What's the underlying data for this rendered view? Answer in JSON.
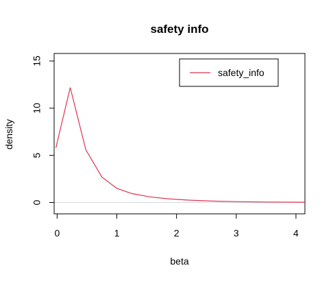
{
  "chart_data": {
    "type": "line",
    "title": "safety info",
    "xlabel": "beta",
    "ylabel": "density",
    "xlim": [
      -0.05,
      4.15
    ],
    "ylim": [
      -1.2,
      15.8
    ],
    "xticks": [
      0,
      1,
      2,
      3,
      4
    ],
    "yticks": [
      0,
      5,
      10,
      15
    ],
    "grid": false,
    "reference_line_y": 0,
    "legend_position": "top-right",
    "colors": {
      "series": "#e0324f",
      "reference": "#d9d9d9",
      "axis": "#000000"
    },
    "series": [
      {
        "name": "safety_info",
        "x": [
          -0.02,
          0.22,
          0.48,
          0.75,
          1.0,
          1.25,
          1.55,
          1.85,
          2.2,
          2.6,
          3.0,
          3.5,
          4.15
        ],
        "y": [
          5.8,
          12.2,
          5.6,
          2.7,
          1.5,
          0.95,
          0.6,
          0.4,
          0.25,
          0.15,
          0.09,
          0.05,
          0.03
        ]
      }
    ]
  }
}
